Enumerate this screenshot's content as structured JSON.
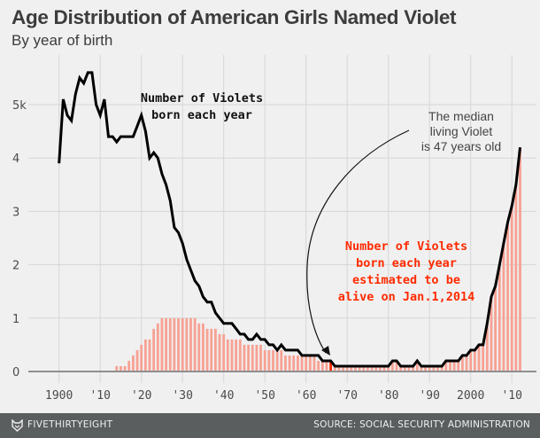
{
  "header": {
    "title": "Age Distribution of American Girls Named Violet",
    "subtitle": "By year of birth"
  },
  "footer": {
    "brand": "FIVETHIRTYEIGHT",
    "brand_icon": "fox-icon",
    "source": "SOURCE: SOCIAL SECURITY ADMINISTRATION"
  },
  "colors": {
    "line": "#000000",
    "bars": "#f7a193",
    "highlight_bar": "#ff2a00",
    "annotation_red": "#ff2a00",
    "grid": "#d6d6d6",
    "background": "#f0f0f0",
    "footer": "#5b5e5e"
  },
  "chart_data": {
    "type": "line+bar",
    "title": "Age Distribution of American Girls Named Violet",
    "subtitle": "By year of birth",
    "xlabel": "",
    "ylabel": "",
    "xlim": [
      1896,
      2014
    ],
    "ylim": [
      0,
      5.7
    ],
    "y_unit": "thousands",
    "grid": true,
    "x_ticks": [
      1900,
      1910,
      1920,
      1930,
      1940,
      1950,
      1960,
      1970,
      1980,
      1990,
      2000,
      2010
    ],
    "x_tick_labels": [
      "1900",
      "'10",
      "'20",
      "'30",
      "'40",
      "'50",
      "'60",
      "'70",
      "'80",
      "'90",
      "2000",
      "'10"
    ],
    "y_ticks": [
      0,
      1,
      2,
      3,
      4,
      5
    ],
    "y_tick_labels": [
      "0",
      "1",
      "2",
      "3",
      "4",
      "5k"
    ],
    "start_year": 1900,
    "series": [
      {
        "name": "Number of Violets born each year",
        "type": "line",
        "values": [
          3.9,
          5.1,
          4.8,
          4.7,
          5.2,
          5.5,
          5.4,
          5.6,
          5.6,
          5.0,
          4.8,
          5.1,
          4.4,
          4.4,
          4.3,
          4.4,
          4.4,
          4.4,
          4.4,
          4.6,
          4.8,
          4.5,
          4.0,
          4.1,
          4.0,
          3.7,
          3.5,
          3.2,
          2.7,
          2.6,
          2.4,
          2.1,
          1.9,
          1.7,
          1.6,
          1.4,
          1.3,
          1.3,
          1.1,
          1.0,
          0.9,
          0.9,
          0.9,
          0.8,
          0.7,
          0.7,
          0.6,
          0.6,
          0.7,
          0.6,
          0.6,
          0.5,
          0.5,
          0.4,
          0.5,
          0.4,
          0.4,
          0.4,
          0.4,
          0.3,
          0.3,
          0.3,
          0.3,
          0.3,
          0.2,
          0.2,
          0.2,
          0.1,
          0.1,
          0.1,
          0.1,
          0.1,
          0.1,
          0.1,
          0.1,
          0.1,
          0.1,
          0.1,
          0.1,
          0.1,
          0.1,
          0.2,
          0.2,
          0.1,
          0.1,
          0.1,
          0.1,
          0.2,
          0.1,
          0.1,
          0.1,
          0.1,
          0.1,
          0.1,
          0.2,
          0.2,
          0.2,
          0.2,
          0.3,
          0.3,
          0.4,
          0.4,
          0.5,
          0.5,
          0.9,
          1.4,
          1.6,
          2.0,
          2.4,
          2.8,
          3.1,
          3.5,
          4.2
        ]
      },
      {
        "name": "Number of Violets born each year estimated to be alive on Jan.1,2014",
        "type": "bar",
        "values": [
          0,
          0,
          0,
          0,
          0,
          0,
          0,
          0,
          0,
          0,
          0,
          0,
          0,
          0,
          0.1,
          0.1,
          0.1,
          0.2,
          0.3,
          0.4,
          0.5,
          0.6,
          0.6,
          0.8,
          0.9,
          1.0,
          1.0,
          1.0,
          1.0,
          1.0,
          1.0,
          1.0,
          1.0,
          1.0,
          0.9,
          0.9,
          0.8,
          0.8,
          0.8,
          0.7,
          0.7,
          0.6,
          0.6,
          0.6,
          0.6,
          0.5,
          0.5,
          0.5,
          0.5,
          0.5,
          0.4,
          0.4,
          0.4,
          0.4,
          0.4,
          0.3,
          0.3,
          0.3,
          0.3,
          0.3,
          0.3,
          0.3,
          0.3,
          0.2,
          0.2,
          0.2,
          0.2,
          0.1,
          0.1,
          0.1,
          0.1,
          0.1,
          0.1,
          0.1,
          0.1,
          0.1,
          0.1,
          0.1,
          0.1,
          0.1,
          0.1,
          0.2,
          0.2,
          0.1,
          0.1,
          0.1,
          0.1,
          0.2,
          0.1,
          0.1,
          0.1,
          0.1,
          0.1,
          0.1,
          0.2,
          0.2,
          0.2,
          0.2,
          0.3,
          0.3,
          0.4,
          0.4,
          0.5,
          0.5,
          0.9,
          1.4,
          1.6,
          2.0,
          2.4,
          2.8,
          3.1,
          3.5,
          4.2
        ]
      }
    ],
    "highlight_year": 1966,
    "annotations": [
      {
        "id": "line-label",
        "lines": [
          "Number of Violets",
          "born each year"
        ]
      },
      {
        "id": "bar-label",
        "lines": [
          "Number of Violets",
          "born each year",
          "estimated to be",
          "alive on Jan.1,2014"
        ]
      },
      {
        "id": "median-note",
        "lines": [
          "The median",
          "living Violet",
          "is 47 years old"
        ]
      }
    ]
  }
}
